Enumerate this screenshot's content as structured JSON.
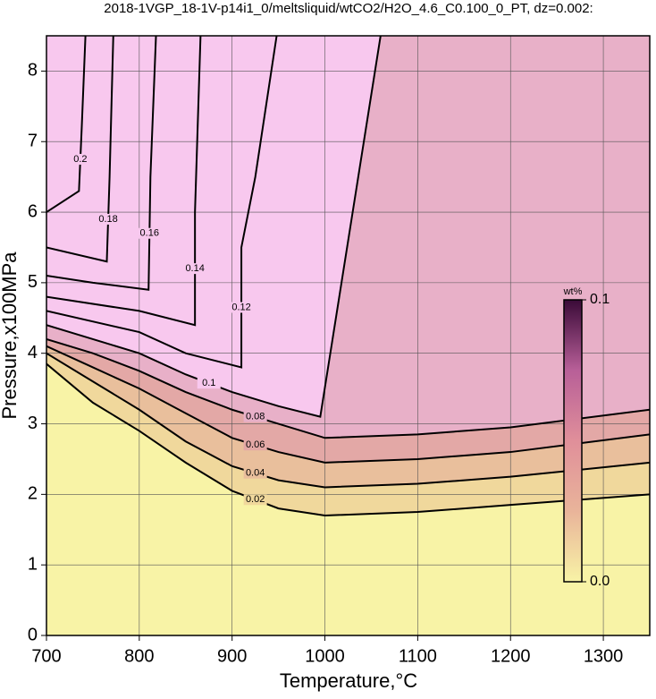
{
  "chart_data": {
    "type": "contour",
    "title": "2018-1VGP_18-1V-p14i1_0/meltsliquid/wtCO2/H2O_4.6_C0.100_0_PT, dz=0.002:",
    "x_label": "Temperature,°C",
    "y_label": "Pressure,x100MPa",
    "xlim": [
      700,
      1350
    ],
    "ylim": [
      0,
      8.5
    ],
    "xticks": [
      700,
      800,
      900,
      1000,
      1100,
      1200,
      1300
    ],
    "yticks": [
      0,
      1,
      2,
      3,
      4,
      5,
      6,
      7,
      8
    ],
    "grid": true,
    "background": "#f8f3a6",
    "contours": [
      {
        "level": 0.02,
        "color": "#f0d89c",
        "x": [
          700,
          750,
          800,
          850,
          900,
          950,
          1000,
          1100,
          1200,
          1350
        ],
        "y": [
          3.85,
          3.3,
          2.9,
          2.45,
          2.05,
          1.8,
          1.7,
          1.75,
          1.85,
          2.0
        ]
      },
      {
        "level": 0.04,
        "color": "#e9bf9c",
        "x": [
          700,
          750,
          800,
          850,
          900,
          950,
          1000,
          1100,
          1200,
          1350
        ],
        "y": [
          4.0,
          3.6,
          3.2,
          2.75,
          2.4,
          2.2,
          2.1,
          2.15,
          2.25,
          2.45
        ]
      },
      {
        "level": 0.06,
        "color": "#e3a8a6",
        "x": [
          700,
          750,
          800,
          850,
          900,
          950,
          1000,
          1100,
          1200,
          1350
        ],
        "y": [
          4.1,
          3.8,
          3.5,
          3.15,
          2.8,
          2.6,
          2.45,
          2.5,
          2.6,
          2.85
        ]
      },
      {
        "level": 0.08,
        "color": "#e8b0c8",
        "x": [
          700,
          750,
          800,
          850,
          900,
          950,
          1000,
          1100,
          1200,
          1350
        ],
        "y": [
          4.2,
          4.0,
          3.75,
          3.45,
          3.2,
          3.0,
          2.8,
          2.85,
          2.95,
          3.2
        ]
      },
      {
        "level": 0.1,
        "color": "#f8c8ee",
        "x": [
          700,
          750,
          800,
          850,
          900,
          950,
          995,
          1060
        ],
        "y": [
          4.4,
          4.2,
          4.0,
          3.7,
          3.45,
          3.25,
          3.1,
          8.5
        ]
      },
      {
        "level": 0.12,
        "color": "#f8c8ee",
        "x": [
          700,
          800,
          850,
          910,
          910,
          925,
          948
        ],
        "y": [
          4.6,
          4.3,
          4.0,
          3.8,
          5.5,
          6.5,
          8.5
        ]
      },
      {
        "level": 0.14,
        "color": "#f8c8ee",
        "x": [
          700,
          800,
          860,
          860,
          866
        ],
        "y": [
          4.8,
          4.6,
          4.4,
          6.0,
          8.5
        ]
      },
      {
        "level": 0.16,
        "color": "#f8c8ee",
        "x": [
          700,
          750,
          810,
          812,
          818
        ],
        "y": [
          5.1,
          5.0,
          4.9,
          6.5,
          8.5
        ]
      },
      {
        "level": 0.18,
        "color": "#f8c8ee",
        "x": [
          700,
          765,
          768,
          772
        ],
        "y": [
          5.5,
          5.3,
          6.5,
          8.5
        ]
      },
      {
        "level": 0.2,
        "color": "#f8c8ee",
        "x": [
          700,
          735,
          738,
          742
        ],
        "y": [
          6.0,
          6.3,
          7.2,
          8.5
        ]
      }
    ],
    "colorbar": {
      "label": "wt%",
      "colors": [
        "#f8f3a6",
        "#e9b49a",
        "#e08f9a",
        "#b85f98",
        "#3a0a38"
      ],
      "ticks": [
        {
          "value": 0,
          "label": "0.0"
        },
        {
          "value": 0.1,
          "label": "0.1"
        }
      ]
    }
  }
}
